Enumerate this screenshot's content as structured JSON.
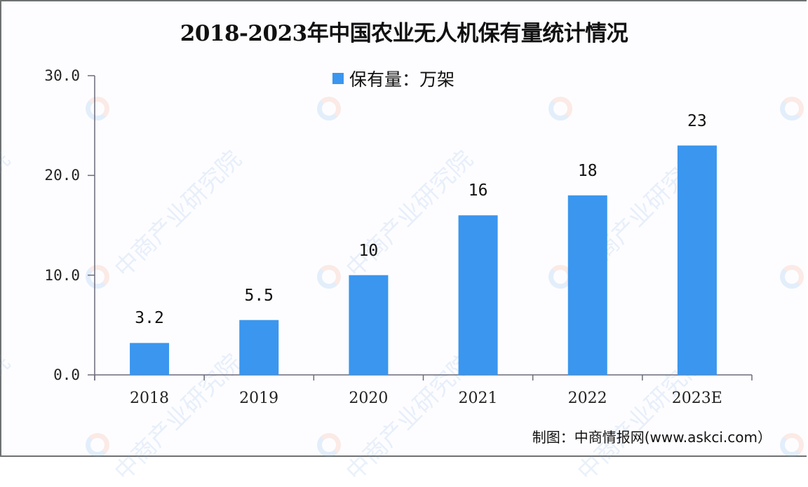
{
  "title": "2018-2023年中国农业无人机保有量统计情况",
  "legend": {
    "label": "保有量：万架",
    "color": "#3a96ee"
  },
  "source": "制图：中商情报网(www.askci.com）",
  "watermark": {
    "text": "中商产业研究院"
  },
  "colors": {
    "bar": "#3a96ee",
    "axis": "#6b6b7a",
    "text": "#111111",
    "border": "#6f7172"
  },
  "chart_data": {
    "type": "bar",
    "title": "2018-2023年中国农业无人机保有量统计情况",
    "categories": [
      "2018",
      "2019",
      "2020",
      "2021",
      "2022",
      "2023E"
    ],
    "series": [
      {
        "name": "保有量：万架",
        "values": [
          3.2,
          5.5,
          10,
          16,
          18,
          23
        ]
      }
    ],
    "value_labels": [
      "3.2",
      "5.5",
      "10",
      "16",
      "18",
      "23"
    ],
    "xlabel": "",
    "ylabel": "",
    "ylim": [
      0,
      30
    ],
    "yticks": [
      0,
      10,
      20,
      30
    ],
    "ytick_labels": [
      "0.0",
      "10.0",
      "20.0",
      "30.0"
    ],
    "grid": false,
    "legend_position": "top"
  }
}
